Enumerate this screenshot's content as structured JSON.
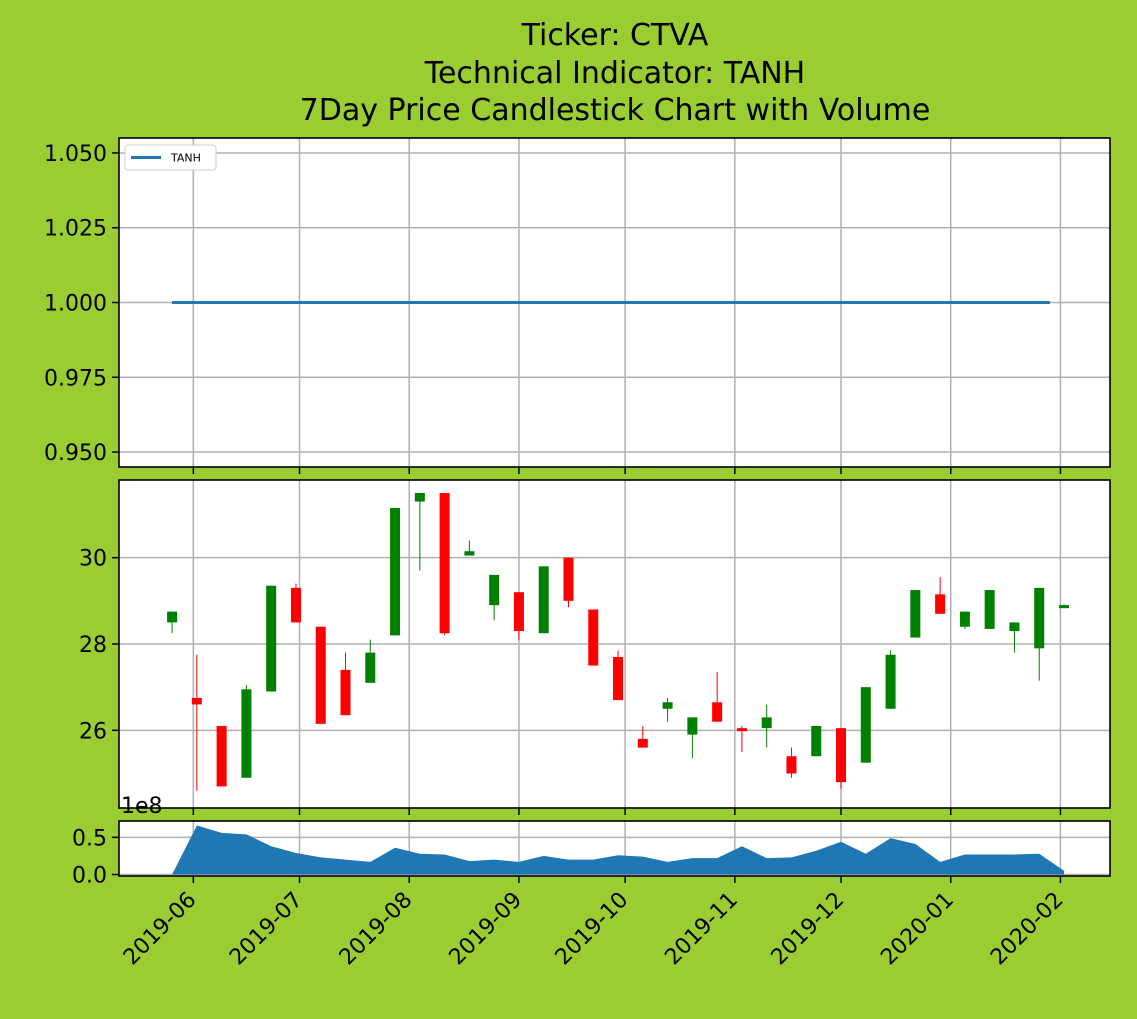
{
  "title_lines": [
    "Ticker: CTVA",
    "Technical Indicator: TANH",
    "7Day Price Candlestick Chart with Volume"
  ],
  "colors": {
    "background": "#9acd32",
    "panel": "#ffffff",
    "grid": "#b0b0b0",
    "indicator_line": "#1f77b4",
    "volume_fill": "#1f77b4",
    "candle_up": "#008000",
    "candle_down": "#ff0000"
  },
  "chart_data": [
    {
      "type": "line",
      "panel": "indicator",
      "legend": [
        "TANH"
      ],
      "legend_position": "upper-left",
      "grid": true,
      "ylim": [
        0.945,
        1.055
      ],
      "y_ticks": [
        "0.950",
        "0.975",
        "1.000",
        "1.025",
        "1.050"
      ],
      "series": [
        {
          "name": "TANH",
          "x": [
            "2019-05-26",
            "2020-01-29"
          ],
          "values": [
            1.0,
            1.0
          ]
        }
      ]
    },
    {
      "type": "candlestick",
      "panel": "price",
      "grid": true,
      "ylim": [
        24.2,
        31.8
      ],
      "y_ticks": [
        "26",
        "28",
        "30"
      ],
      "candles": [
        {
          "date": "2019-05-26",
          "open": 28.5,
          "high": 28.75,
          "low": 28.25,
          "close": 28.75
        },
        {
          "date": "2019-06-02",
          "open": 26.75,
          "high": 27.75,
          "low": 24.6,
          "close": 26.6
        },
        {
          "date": "2019-06-09",
          "open": 26.1,
          "high": 26.1,
          "low": 24.7,
          "close": 24.7
        },
        {
          "date": "2019-06-16",
          "open": 24.9,
          "high": 27.05,
          "low": 24.9,
          "close": 26.95
        },
        {
          "date": "2019-06-23",
          "open": 26.9,
          "high": 29.35,
          "low": 26.9,
          "close": 29.35
        },
        {
          "date": "2019-06-30",
          "open": 29.3,
          "high": 29.4,
          "low": 28.5,
          "close": 28.5
        },
        {
          "date": "2019-07-07",
          "open": 28.4,
          "high": 28.4,
          "low": 26.15,
          "close": 26.15
        },
        {
          "date": "2019-07-14",
          "open": 27.4,
          "high": 27.8,
          "low": 26.35,
          "close": 26.35
        },
        {
          "date": "2019-07-21",
          "open": 27.1,
          "high": 28.1,
          "low": 27.1,
          "close": 27.8
        },
        {
          "date": "2019-07-28",
          "open": 28.2,
          "high": 31.15,
          "low": 28.2,
          "close": 31.15
        },
        {
          "date": "2019-08-04",
          "open": 31.3,
          "high": 31.5,
          "low": 29.7,
          "close": 31.5
        },
        {
          "date": "2019-08-11",
          "open": 31.5,
          "high": 31.5,
          "low": 28.2,
          "close": 28.25
        },
        {
          "date": "2019-08-18",
          "open": 30.05,
          "high": 30.4,
          "low": 30.05,
          "close": 30.15
        },
        {
          "date": "2019-08-25",
          "open": 28.9,
          "high": 29.6,
          "low": 28.55,
          "close": 29.6
        },
        {
          "date": "2019-09-01",
          "open": 29.2,
          "high": 29.2,
          "low": 28.1,
          "close": 28.3
        },
        {
          "date": "2019-09-08",
          "open": 28.25,
          "high": 29.8,
          "low": 28.25,
          "close": 29.8
        },
        {
          "date": "2019-09-15",
          "open": 30.0,
          "high": 30.0,
          "low": 28.85,
          "close": 29.0
        },
        {
          "date": "2019-09-22",
          "open": 28.8,
          "high": 28.8,
          "low": 27.5,
          "close": 27.5
        },
        {
          "date": "2019-09-29",
          "open": 27.7,
          "high": 27.85,
          "low": 26.7,
          "close": 26.7
        },
        {
          "date": "2019-10-06",
          "open": 25.8,
          "high": 26.1,
          "low": 25.6,
          "close": 25.6
        },
        {
          "date": "2019-10-13",
          "open": 26.5,
          "high": 26.75,
          "low": 26.2,
          "close": 26.65
        },
        {
          "date": "2019-10-20",
          "open": 25.9,
          "high": 26.3,
          "low": 25.35,
          "close": 26.3
        },
        {
          "date": "2019-10-27",
          "open": 26.65,
          "high": 27.35,
          "low": 26.2,
          "close": 26.2
        },
        {
          "date": "2019-11-03",
          "open": 26.05,
          "high": 26.1,
          "low": 25.5,
          "close": 26.0
        },
        {
          "date": "2019-11-10",
          "open": 26.05,
          "high": 26.6,
          "low": 25.6,
          "close": 26.3
        },
        {
          "date": "2019-11-17",
          "open": 25.4,
          "high": 25.6,
          "low": 24.9,
          "close": 25.0
        },
        {
          "date": "2019-11-24",
          "open": 25.4,
          "high": 26.1,
          "low": 25.4,
          "close": 26.1
        },
        {
          "date": "2019-12-01",
          "open": 26.05,
          "high": 26.05,
          "low": 24.65,
          "close": 24.8
        },
        {
          "date": "2019-12-08",
          "open": 25.25,
          "high": 27.0,
          "low": 25.25,
          "close": 27.0
        },
        {
          "date": "2019-12-15",
          "open": 26.5,
          "high": 27.85,
          "low": 26.5,
          "close": 27.75
        },
        {
          "date": "2019-12-22",
          "open": 28.15,
          "high": 29.25,
          "low": 28.15,
          "close": 29.25
        },
        {
          "date": "2019-12-29",
          "open": 29.15,
          "high": 29.55,
          "low": 28.7,
          "close": 28.7
        },
        {
          "date": "2020-01-05",
          "open": 28.4,
          "high": 28.75,
          "low": 28.35,
          "close": 28.75
        },
        {
          "date": "2020-01-12",
          "open": 28.35,
          "high": 29.25,
          "low": 28.35,
          "close": 29.25
        },
        {
          "date": "2020-01-19",
          "open": 28.3,
          "high": 28.5,
          "low": 27.8,
          "close": 28.5
        },
        {
          "date": "2020-01-26",
          "open": 27.9,
          "high": 29.3,
          "low": 27.15,
          "close": 29.3
        },
        {
          "date": "2020-02-02",
          "open": 28.85,
          "high": 28.92,
          "low": 28.85,
          "close": 28.9
        }
      ]
    },
    {
      "type": "area",
      "panel": "volume",
      "grid": true,
      "ylim": [
        -0.02,
        0.72
      ],
      "y_ticks": [
        "0.0",
        "0.5"
      ],
      "y_offset_label": "1e8",
      "x": [
        "2019-05-26",
        "2019-06-02",
        "2019-06-09",
        "2019-06-16",
        "2019-06-23",
        "2019-06-30",
        "2019-07-07",
        "2019-07-14",
        "2019-07-21",
        "2019-07-28",
        "2019-08-04",
        "2019-08-11",
        "2019-08-18",
        "2019-08-25",
        "2019-09-01",
        "2019-09-08",
        "2019-09-15",
        "2019-09-22",
        "2019-09-29",
        "2019-10-06",
        "2019-10-13",
        "2019-10-20",
        "2019-10-27",
        "2019-11-03",
        "2019-11-10",
        "2019-11-17",
        "2019-11-24",
        "2019-12-01",
        "2019-12-08",
        "2019-12-15",
        "2019-12-22",
        "2019-12-29",
        "2020-01-05",
        "2020-01-12",
        "2020-01-19",
        "2020-01-26",
        "2020-02-02"
      ],
      "values": [
        0.0,
        0.66,
        0.56,
        0.54,
        0.38,
        0.29,
        0.23,
        0.2,
        0.17,
        0.36,
        0.28,
        0.27,
        0.18,
        0.2,
        0.17,
        0.25,
        0.2,
        0.2,
        0.26,
        0.24,
        0.17,
        0.22,
        0.22,
        0.38,
        0.22,
        0.23,
        0.32,
        0.44,
        0.28,
        0.49,
        0.41,
        0.17,
        0.27,
        0.27,
        0.27,
        0.28,
        0.05
      ],
      "x_ticks": [
        "2019-06",
        "2019-07",
        "2019-08",
        "2019-09",
        "2019-10",
        "2019-11",
        "2019-12",
        "2020-01",
        "2020-02"
      ]
    }
  ]
}
